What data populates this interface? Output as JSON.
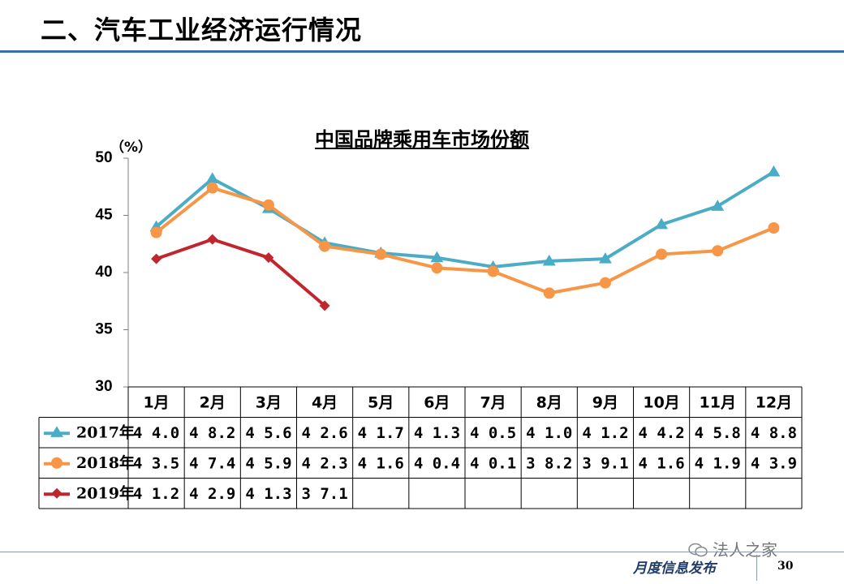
{
  "slide": {
    "title": "二、汽车工业经济运行情况",
    "footer_text": "月度信息发布",
    "page_number": "30",
    "watermark": "法人之家"
  },
  "chart_data": {
    "type": "line",
    "title": "中国品牌乘用车市场份额",
    "ylabel": "（%）",
    "ylim": [
      30,
      50
    ],
    "yticks": [
      30,
      35,
      40,
      45,
      50
    ],
    "categories": [
      "1月",
      "2月",
      "3月",
      "4月",
      "5月",
      "6月",
      "7月",
      "8月",
      "9月",
      "10月",
      "11月",
      "12月"
    ],
    "grid": false,
    "legend": "data-table-left",
    "series": [
      {
        "name": "2017年",
        "color": "#4bacc6",
        "marker": "triangle",
        "values": [
          44.0,
          48.2,
          45.6,
          42.6,
          41.7,
          41.3,
          40.5,
          41.0,
          41.2,
          44.2,
          45.8,
          48.8
        ]
      },
      {
        "name": "2018年",
        "color": "#f79646",
        "marker": "circle",
        "values": [
          43.5,
          47.4,
          45.9,
          42.3,
          41.6,
          40.4,
          40.1,
          38.2,
          39.1,
          41.6,
          41.9,
          43.9
        ]
      },
      {
        "name": "2019年",
        "color": "#c0262d",
        "marker": "diamond",
        "values": [
          41.2,
          42.9,
          41.3,
          37.1,
          null,
          null,
          null,
          null,
          null,
          null,
          null,
          null
        ]
      }
    ]
  }
}
